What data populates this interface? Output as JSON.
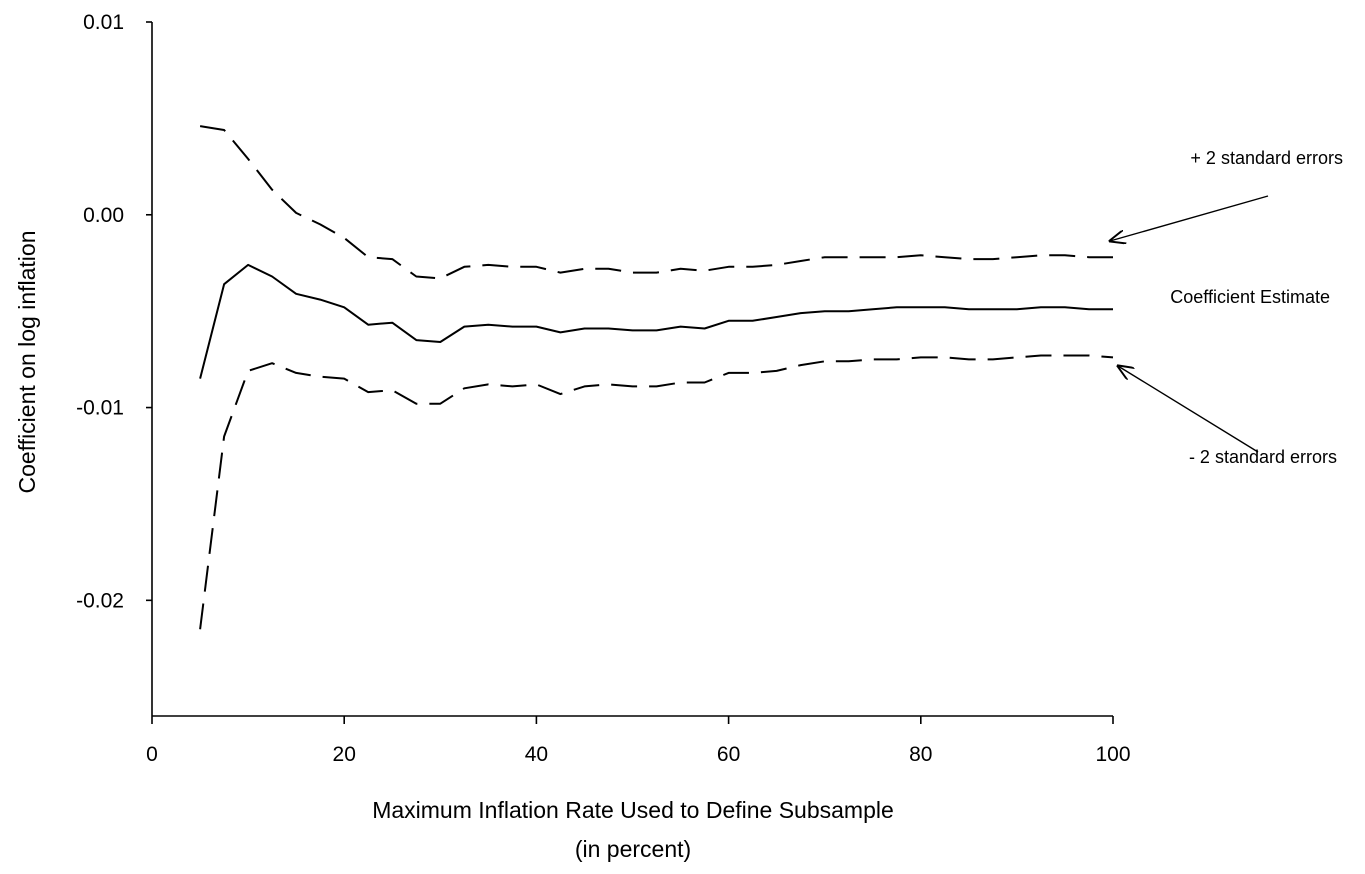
{
  "chart_data": {
    "type": "line",
    "xlabel": "Maximum Inflation Rate Used to Define Subsample",
    "xlabel_line2": "(in percent)",
    "ylabel": "Coefficient on log inflation",
    "xlim": [
      0,
      100
    ],
    "ylim": [
      -0.026,
      0.01
    ],
    "x_ticks": [
      0,
      20,
      40,
      60,
      80,
      100
    ],
    "x_tick_labels": [
      "0",
      "20",
      "40",
      "60",
      "80",
      "100"
    ],
    "y_ticks": [
      0.01,
      0.0,
      -0.01,
      -0.02
    ],
    "y_tick_labels": [
      "0.01",
      "0.00",
      "-0.01",
      "-0.02"
    ],
    "grid": false,
    "x": [
      5,
      7.5,
      10,
      12.5,
      15,
      17.5,
      20,
      22.5,
      25,
      27.5,
      30,
      32.5,
      35,
      37.5,
      40,
      42.5,
      45,
      47.5,
      50,
      52.5,
      55,
      57.5,
      60,
      62.5,
      65,
      67.5,
      70,
      72.5,
      75,
      77.5,
      80,
      82.5,
      85,
      87.5,
      90,
      92.5,
      95,
      97.5,
      100
    ],
    "series": [
      {
        "name": "+ 2 standard errors",
        "style": "dashed",
        "values": [
          0.0046,
          0.0044,
          0.0029,
          0.0013,
          0.0001,
          -0.0005,
          -0.0012,
          -0.0022,
          -0.0023,
          -0.0032,
          -0.0033,
          -0.0027,
          -0.0026,
          -0.0027,
          -0.0027,
          -0.003,
          -0.0028,
          -0.0028,
          -0.003,
          -0.003,
          -0.0028,
          -0.0029,
          -0.0027,
          -0.0027,
          -0.0026,
          -0.0024,
          -0.0022,
          -0.0022,
          -0.0022,
          -0.0022,
          -0.0021,
          -0.0022,
          -0.0023,
          -0.0023,
          -0.0022,
          -0.0021,
          -0.0021,
          -0.0022,
          -0.0022
        ]
      },
      {
        "name": "Coefficient Estimate",
        "style": "solid",
        "values": [
          -0.0085,
          -0.0036,
          -0.0026,
          -0.0032,
          -0.0041,
          -0.0044,
          -0.0048,
          -0.0057,
          -0.0056,
          -0.0065,
          -0.0066,
          -0.0058,
          -0.0057,
          -0.0058,
          -0.0058,
          -0.0061,
          -0.0059,
          -0.0059,
          -0.006,
          -0.006,
          -0.0058,
          -0.0059,
          -0.0055,
          -0.0055,
          -0.0053,
          -0.0051,
          -0.005,
          -0.005,
          -0.0049,
          -0.0048,
          -0.0048,
          -0.0048,
          -0.0049,
          -0.0049,
          -0.0049,
          -0.0048,
          -0.0048,
          -0.0049,
          -0.0049
        ]
      },
      {
        "name": "- 2 standard errors",
        "style": "dashed",
        "values": [
          -0.0215,
          -0.0115,
          -0.0081,
          -0.0077,
          -0.0082,
          -0.0084,
          -0.0085,
          -0.0092,
          -0.0091,
          -0.0098,
          -0.0098,
          -0.009,
          -0.0088,
          -0.0089,
          -0.0088,
          -0.0093,
          -0.0089,
          -0.0088,
          -0.0089,
          -0.0089,
          -0.0087,
          -0.0087,
          -0.0082,
          -0.0082,
          -0.0081,
          -0.0078,
          -0.0076,
          -0.0076,
          -0.0075,
          -0.0075,
          -0.0074,
          -0.0074,
          -0.0075,
          -0.0075,
          -0.0074,
          -0.0073,
          -0.0073,
          -0.0073,
          -0.0074
        ]
      }
    ],
    "annotations": [
      {
        "text": "+ 2 standard errors",
        "arrow_to_series": 0
      },
      {
        "text": "Coefficient Estimate"
      },
      {
        "text": "- 2 standard errors",
        "arrow_to_series": 2
      }
    ]
  }
}
